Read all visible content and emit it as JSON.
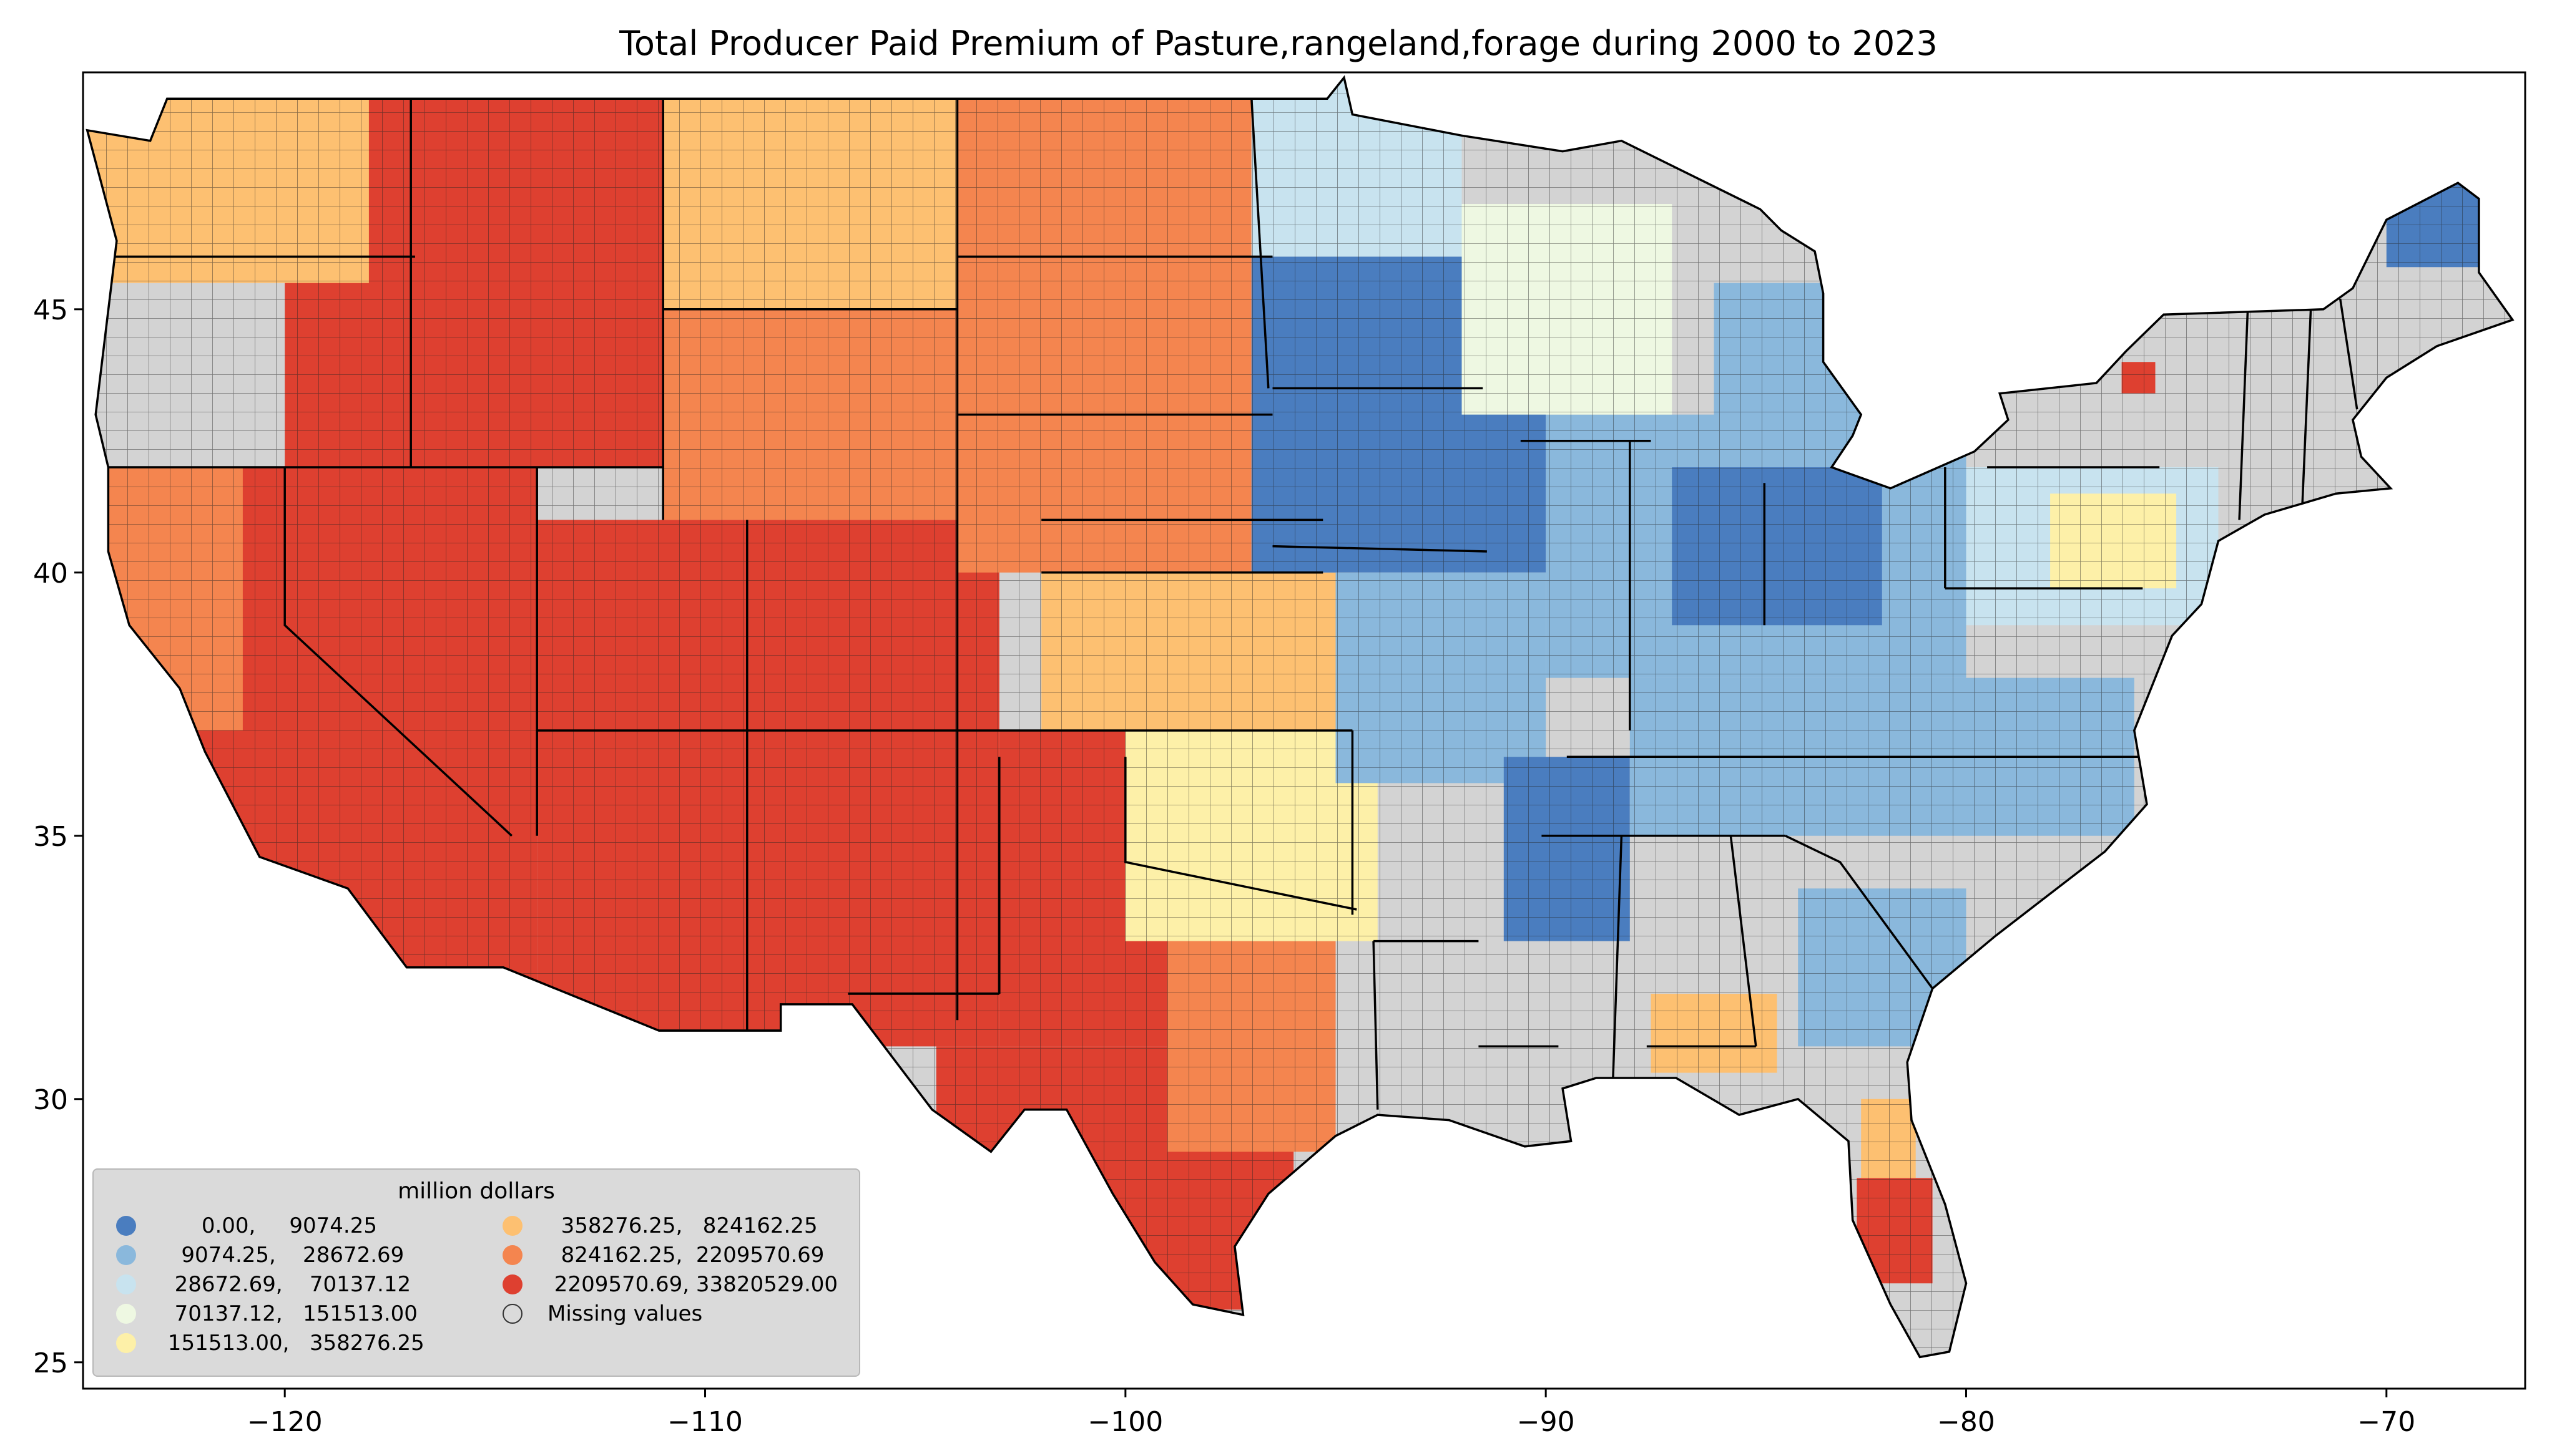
{
  "title": "Total Producer Paid Premium of Pasture,rangeland,forage during 2000 to 2023",
  "map": {
    "x_ticks": [
      {
        "value": -120,
        "label": "−120"
      },
      {
        "value": -110,
        "label": "−110"
      },
      {
        "value": -100,
        "label": "−100"
      },
      {
        "value": -90,
        "label": "−90"
      },
      {
        "value": -80,
        "label": "−80"
      },
      {
        "value": -70,
        "label": "−70"
      }
    ],
    "y_ticks": [
      {
        "value": 25,
        "label": "25"
      },
      {
        "value": 30,
        "label": "30"
      },
      {
        "value": 35,
        "label": "35"
      },
      {
        "value": 40,
        "label": "40"
      },
      {
        "value": 45,
        "label": "45"
      }
    ],
    "xlim": [
      -124.8,
      -66.7
    ],
    "ylim": [
      24.5,
      49.5
    ],
    "missing_color": "#d3d3d3",
    "border_color": "#000000"
  },
  "legend": {
    "title": "million dollars",
    "placement": "lower-left",
    "items": [
      {
        "label": "      0.00,     9074.25",
        "color": "#4a7dbf"
      },
      {
        "label": "   9074.25,    28672.69",
        "color": "#8ab8dc"
      },
      {
        "label": "  28672.69,    70137.12",
        "color": "#c8e3ef"
      },
      {
        "label": "  70137.12,   151513.00",
        "color": "#eef8e2"
      },
      {
        "label": " 151513.00,   358276.25",
        "color": "#fdf0a8"
      },
      {
        "label": "  358276.25,   824162.25",
        "color": "#fdc071"
      },
      {
        "label": "  824162.25,  2209570.69",
        "color": "#f4854f"
      },
      {
        "label": " 2209570.69, 33820529.00",
        "color": "#de4030"
      },
      {
        "label": "Missing values",
        "color": "none"
      }
    ]
  }
}
